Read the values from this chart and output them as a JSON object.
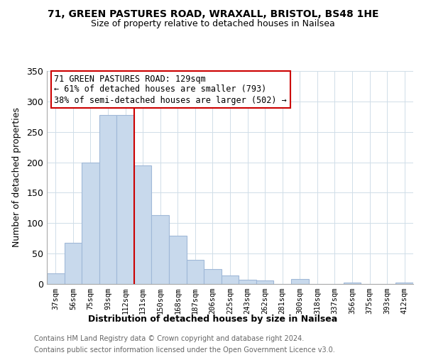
{
  "title_line1": "71, GREEN PASTURES ROAD, WRAXALL, BRISTOL, BS48 1HE",
  "title_line2": "Size of property relative to detached houses in Nailsea",
  "xlabel": "Distribution of detached houses by size in Nailsea",
  "ylabel": "Number of detached properties",
  "bin_labels": [
    "37sqm",
    "56sqm",
    "75sqm",
    "93sqm",
    "112sqm",
    "131sqm",
    "150sqm",
    "168sqm",
    "187sqm",
    "206sqm",
    "225sqm",
    "243sqm",
    "262sqm",
    "281sqm",
    "300sqm",
    "318sqm",
    "337sqm",
    "356sqm",
    "375sqm",
    "393sqm",
    "412sqm"
  ],
  "bar_values": [
    18,
    68,
    200,
    278,
    278,
    195,
    113,
    79,
    40,
    24,
    14,
    7,
    6,
    0,
    8,
    0,
    0,
    2,
    0,
    0,
    2
  ],
  "bar_color": "#c8d9ec",
  "bar_edge_color": "#a0b8d8",
  "vline_color": "#cc0000",
  "annotation_text": "71 GREEN PASTURES ROAD: 129sqm\n← 61% of detached houses are smaller (793)\n38% of semi-detached houses are larger (502) →",
  "annotation_box_color": "#ffffff",
  "annotation_box_edge": "#cc0000",
  "ylim": [
    0,
    350
  ],
  "yticks": [
    0,
    50,
    100,
    150,
    200,
    250,
    300,
    350
  ],
  "footer_line1": "Contains HM Land Registry data © Crown copyright and database right 2024.",
  "footer_line2": "Contains public sector information licensed under the Open Government Licence v3.0.",
  "grid_color": "#d0dde8",
  "background_color": "#ffffff"
}
